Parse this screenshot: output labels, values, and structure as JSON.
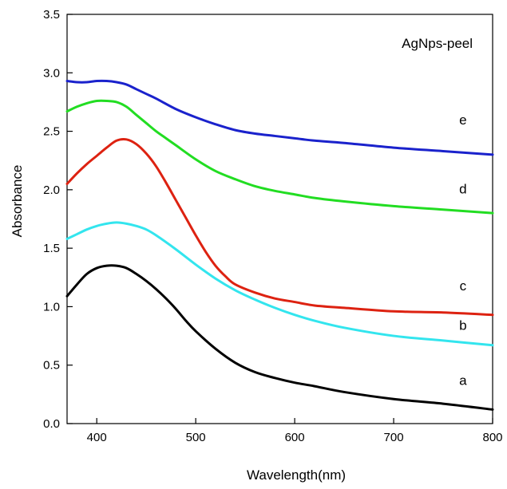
{
  "chart_data": {
    "type": "line",
    "title": "",
    "annotation": "AgNps-peel",
    "xlabel": "Wavelength(nm)",
    "ylabel": "Absorbance",
    "xlim": [
      370,
      800
    ],
    "ylim": [
      0,
      3.5
    ],
    "xticks": [
      400,
      500,
      600,
      700,
      800
    ],
    "yticks": [
      0.0,
      0.5,
      1.0,
      1.5,
      2.0,
      2.5,
      3.0,
      3.5
    ],
    "ytick_labels": [
      "0.0",
      "0.5",
      "1.0",
      "1.5",
      "2.0",
      "2.5",
      "3.0",
      "3.5"
    ],
    "grid": false,
    "series": [
      {
        "name": "a",
        "color": "#000000",
        "x": [
          370,
          380,
          390,
          400,
          410,
          420,
          430,
          440,
          450,
          460,
          470,
          480,
          490,
          500,
          520,
          540,
          560,
          580,
          600,
          620,
          650,
          700,
          750,
          800
        ],
        "y": [
          1.09,
          1.19,
          1.28,
          1.33,
          1.35,
          1.35,
          1.33,
          1.28,
          1.22,
          1.15,
          1.07,
          0.98,
          0.88,
          0.79,
          0.64,
          0.52,
          0.44,
          0.39,
          0.35,
          0.32,
          0.27,
          0.21,
          0.17,
          0.12
        ]
      },
      {
        "name": "b",
        "color": "#33e5ee",
        "x": [
          370,
          380,
          390,
          400,
          410,
          420,
          430,
          440,
          450,
          460,
          480,
          500,
          520,
          540,
          560,
          580,
          600,
          620,
          650,
          700,
          750,
          800
        ],
        "y": [
          1.58,
          1.62,
          1.66,
          1.69,
          1.71,
          1.72,
          1.71,
          1.69,
          1.66,
          1.61,
          1.49,
          1.36,
          1.24,
          1.14,
          1.06,
          0.99,
          0.93,
          0.88,
          0.82,
          0.75,
          0.71,
          0.67
        ]
      },
      {
        "name": "c",
        "color": "#dd2211",
        "x": [
          370,
          380,
          390,
          400,
          410,
          420,
          430,
          440,
          450,
          460,
          470,
          480,
          490,
          500,
          510,
          520,
          530,
          540,
          560,
          580,
          600,
          620,
          650,
          700,
          750,
          800
        ],
        "y": [
          2.05,
          2.14,
          2.22,
          2.29,
          2.36,
          2.42,
          2.43,
          2.39,
          2.31,
          2.2,
          2.06,
          1.91,
          1.76,
          1.61,
          1.47,
          1.35,
          1.26,
          1.19,
          1.12,
          1.07,
          1.04,
          1.01,
          0.99,
          0.96,
          0.95,
          0.93
        ]
      },
      {
        "name": "d",
        "color": "#22dd22",
        "x": [
          370,
          380,
          390,
          400,
          410,
          420,
          430,
          440,
          450,
          460,
          470,
          480,
          500,
          520,
          540,
          560,
          580,
          600,
          620,
          650,
          700,
          750,
          800
        ],
        "y": [
          2.67,
          2.71,
          2.74,
          2.76,
          2.76,
          2.75,
          2.71,
          2.64,
          2.57,
          2.5,
          2.44,
          2.38,
          2.26,
          2.16,
          2.09,
          2.03,
          1.99,
          1.96,
          1.93,
          1.9,
          1.86,
          1.83,
          1.8
        ]
      },
      {
        "name": "e",
        "color": "#1a22cc",
        "x": [
          370,
          380,
          390,
          400,
          410,
          420,
          430,
          440,
          450,
          460,
          480,
          500,
          520,
          540,
          560,
          580,
          600,
          620,
          650,
          700,
          750,
          800
        ],
        "y": [
          2.93,
          2.92,
          2.92,
          2.93,
          2.93,
          2.92,
          2.9,
          2.86,
          2.82,
          2.78,
          2.69,
          2.62,
          2.56,
          2.51,
          2.48,
          2.46,
          2.44,
          2.42,
          2.4,
          2.36,
          2.33,
          2.3
        ]
      }
    ],
    "series_labels": [
      {
        "text": "e",
        "x": 770,
        "y": 2.56
      },
      {
        "text": "d",
        "x": 770,
        "y": 1.97
      },
      {
        "text": "c",
        "x": 770,
        "y": 1.14
      },
      {
        "text": "b",
        "x": 770,
        "y": 0.8
      },
      {
        "text": "a",
        "x": 770,
        "y": 0.33
      }
    ]
  }
}
